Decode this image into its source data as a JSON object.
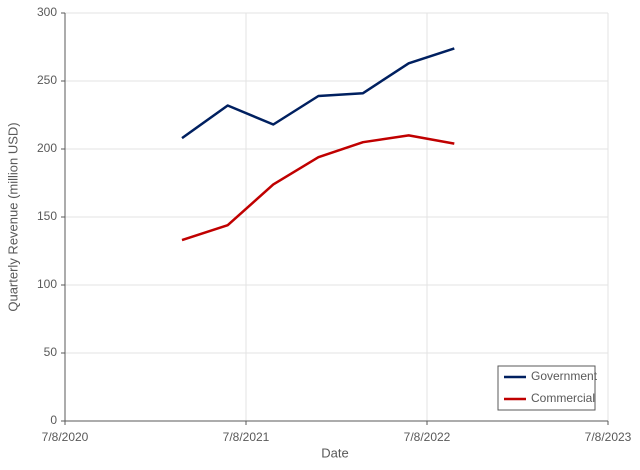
{
  "chart_data": {
    "type": "line",
    "x_label": "Date",
    "y_label": "Quarterly Revenue (million USD)",
    "x": [
      "2021-03-01",
      "2021-06-01",
      "2021-09-01",
      "2021-12-01",
      "2022-03-01",
      "2022-06-01",
      "2022-09-01"
    ],
    "series": [
      {
        "name": "Government",
        "color": "#002060",
        "values": [
          208,
          232,
          218,
          239,
          241,
          263,
          274
        ]
      },
      {
        "name": "Commercial",
        "color": "#c00000",
        "values": [
          133,
          144,
          174,
          194,
          205,
          210,
          204
        ]
      }
    ],
    "xlim": [
      "2020-07-08",
      "2023-07-08"
    ],
    "xticks": [
      {
        "value": "2020-07-08",
        "label": "7/8/2020"
      },
      {
        "value": "2021-07-08",
        "label": "7/8/2021"
      },
      {
        "value": "2022-07-08",
        "label": "7/8/2022"
      },
      {
        "value": "2023-07-08",
        "label": "7/8/2023"
      }
    ],
    "ylim": [
      0,
      300
    ],
    "yticks": [
      0,
      50,
      100,
      150,
      200,
      250,
      300
    ],
    "grid": true,
    "legend": "lower-right"
  }
}
